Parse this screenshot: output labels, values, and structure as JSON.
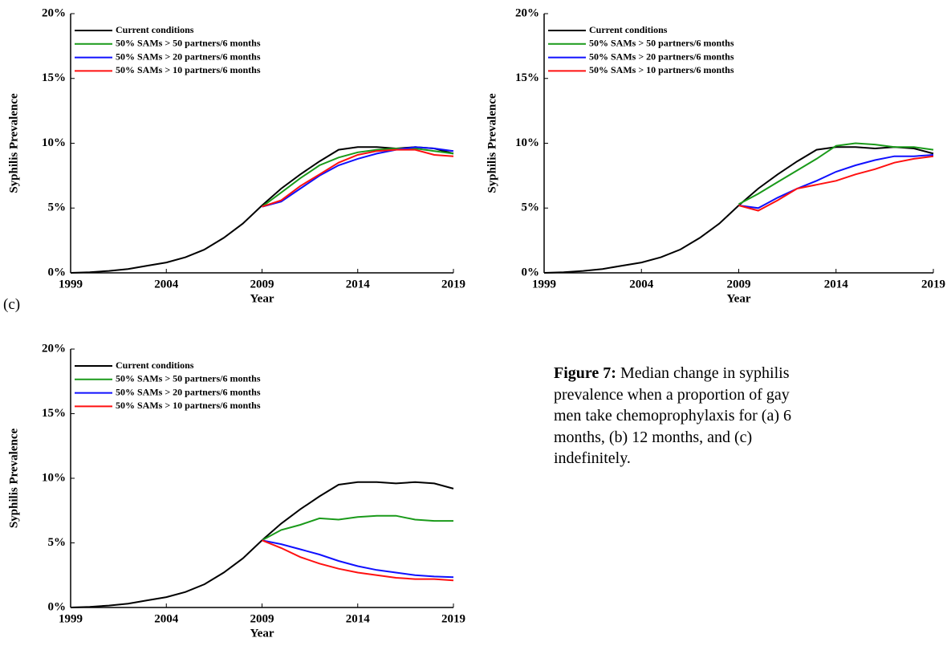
{
  "chart_data": [
    {
      "type": "line",
      "x_label": "Year",
      "y_label": "Syphilis Prevalence",
      "x": [
        1999,
        2000,
        2001,
        2002,
        2003,
        2004,
        2005,
        2006,
        2007,
        2008,
        2009,
        2010,
        2011,
        2012,
        2013,
        2014,
        2015,
        2016,
        2017,
        2018,
        2019
      ],
      "xlim": [
        1999,
        2019
      ],
      "xticks": [
        1999,
        2004,
        2009,
        2014,
        2019
      ],
      "ylim": [
        0,
        20
      ],
      "yticks": [
        {
          "value": 0,
          "label": "0%"
        },
        {
          "value": 5,
          "label": "5%"
        },
        {
          "value": 10,
          "label": "10%"
        },
        {
          "value": 15,
          "label": "15%"
        },
        {
          "value": 20,
          "label": "20%"
        }
      ],
      "legend": "upper left",
      "series": [
        {
          "name": "Current conditions",
          "color": "#000000",
          "values": [
            0,
            0.05,
            0.15,
            0.3,
            0.55,
            0.8,
            1.2,
            1.8,
            2.7,
            3.8,
            5.2,
            6.5,
            7.6,
            8.6,
            9.5,
            9.7,
            9.7,
            9.6,
            9.7,
            9.6,
            9.2
          ]
        },
        {
          "name": "50% SAMs > 50 partners/6 months",
          "color": "#1a9a1a",
          "values": [
            null,
            null,
            null,
            null,
            null,
            null,
            null,
            null,
            null,
            null,
            5.1,
            6.2,
            7.3,
            8.3,
            8.9,
            9.3,
            9.5,
            9.6,
            9.6,
            9.4,
            9.2
          ]
        },
        {
          "name": "50% SAMs > 20 partners/6 months",
          "color": "#1010ff",
          "values": [
            null,
            null,
            null,
            null,
            null,
            null,
            null,
            null,
            null,
            null,
            5.1,
            5.5,
            6.5,
            7.5,
            8.3,
            8.8,
            9.2,
            9.5,
            9.7,
            9.6,
            9.4
          ]
        },
        {
          "name": "50% SAMs > 10 partners/6 months",
          "color": "#ff1010",
          "values": [
            null,
            null,
            null,
            null,
            null,
            null,
            null,
            null,
            null,
            null,
            5.1,
            5.6,
            6.7,
            7.6,
            8.5,
            9.1,
            9.4,
            9.5,
            9.5,
            9.1,
            9.0
          ]
        }
      ]
    },
    {
      "type": "line",
      "x_label": "Year",
      "y_label": "Syphilis Prevalence",
      "x": [
        1999,
        2000,
        2001,
        2002,
        2003,
        2004,
        2005,
        2006,
        2007,
        2008,
        2009,
        2010,
        2011,
        2012,
        2013,
        2014,
        2015,
        2016,
        2017,
        2018,
        2019
      ],
      "xlim": [
        1999,
        2019
      ],
      "xticks": [
        1999,
        2004,
        2009,
        2014,
        2019
      ],
      "ylim": [
        0,
        20
      ],
      "yticks": [
        {
          "value": 0,
          "label": "0%"
        },
        {
          "value": 5,
          "label": "5%"
        },
        {
          "value": 10,
          "label": "10%"
        },
        {
          "value": 15,
          "label": "15%"
        },
        {
          "value": 20,
          "label": "20%"
        }
      ],
      "legend": "upper left",
      "series": [
        {
          "name": "Current conditions",
          "color": "#000000",
          "values": [
            0,
            0.05,
            0.15,
            0.3,
            0.55,
            0.8,
            1.2,
            1.8,
            2.7,
            3.8,
            5.2,
            6.5,
            7.6,
            8.6,
            9.5,
            9.7,
            9.7,
            9.6,
            9.7,
            9.6,
            9.2
          ]
        },
        {
          "name": "50% SAMs > 50 partners/6 months",
          "color": "#1a9a1a",
          "values": [
            null,
            null,
            null,
            null,
            null,
            null,
            null,
            null,
            null,
            null,
            5.3,
            6.1,
            7.0,
            7.9,
            8.8,
            9.8,
            10.0,
            9.9,
            9.7,
            9.7,
            9.5
          ]
        },
        {
          "name": "50% SAMs > 20 partners/6 months",
          "color": "#1010ff",
          "values": [
            null,
            null,
            null,
            null,
            null,
            null,
            null,
            null,
            null,
            null,
            5.2,
            5.0,
            5.8,
            6.5,
            7.1,
            7.8,
            8.3,
            8.7,
            9.0,
            9.0,
            9.1
          ]
        },
        {
          "name": "50% SAMs > 10 partners/6 months",
          "color": "#ff1010",
          "values": [
            null,
            null,
            null,
            null,
            null,
            null,
            null,
            null,
            null,
            null,
            5.2,
            4.8,
            5.6,
            6.5,
            6.8,
            7.1,
            7.6,
            8.0,
            8.5,
            8.8,
            9.0
          ]
        }
      ]
    },
    {
      "type": "line",
      "x_label": "Year",
      "y_label": "Syphilis Prevalence",
      "x": [
        1999,
        2000,
        2001,
        2002,
        2003,
        2004,
        2005,
        2006,
        2007,
        2008,
        2009,
        2010,
        2011,
        2012,
        2013,
        2014,
        2015,
        2016,
        2017,
        2018,
        2019
      ],
      "xlim": [
        1999,
        2019
      ],
      "xticks": [
        1999,
        2004,
        2009,
        2014,
        2019
      ],
      "ylim": [
        0,
        20
      ],
      "yticks": [
        {
          "value": 0,
          "label": "0%"
        },
        {
          "value": 5,
          "label": "5%"
        },
        {
          "value": 10,
          "label": "10%"
        },
        {
          "value": 15,
          "label": "15%"
        },
        {
          "value": 20,
          "label": "20%"
        }
      ],
      "legend": "upper left",
      "series": [
        {
          "name": "Current conditions",
          "color": "#000000",
          "values": [
            0,
            0.05,
            0.15,
            0.3,
            0.55,
            0.8,
            1.2,
            1.8,
            2.7,
            3.8,
            5.2,
            6.5,
            7.6,
            8.6,
            9.5,
            9.7,
            9.7,
            9.6,
            9.7,
            9.6,
            9.2
          ]
        },
        {
          "name": "50% SAMs > 50 partners/6 months",
          "color": "#1a9a1a",
          "values": [
            null,
            null,
            null,
            null,
            null,
            null,
            null,
            null,
            null,
            null,
            5.2,
            6.0,
            6.4,
            6.9,
            6.8,
            7.0,
            7.1,
            7.1,
            6.8,
            6.7,
            6.7
          ]
        },
        {
          "name": "50% SAMs > 20 partners/6 months",
          "color": "#1010ff",
          "values": [
            null,
            null,
            null,
            null,
            null,
            null,
            null,
            null,
            null,
            null,
            5.2,
            4.9,
            4.5,
            4.1,
            3.6,
            3.2,
            2.9,
            2.7,
            2.5,
            2.4,
            2.35
          ]
        },
        {
          "name": "50% SAMs > 10 partners/6 months",
          "color": "#ff1010",
          "values": [
            null,
            null,
            null,
            null,
            null,
            null,
            null,
            null,
            null,
            null,
            5.2,
            4.6,
            3.9,
            3.4,
            3.0,
            2.7,
            2.5,
            2.3,
            2.2,
            2.2,
            2.1
          ]
        }
      ]
    }
  ],
  "panel_label": "(c)",
  "caption": {
    "label": "Figure 7:",
    "text": "Median change in syphilis prevalence when a proportion of gay men take chemoprophylaxis for (a) 6 months, (b) 12 months, and (c) indefinitely."
  }
}
